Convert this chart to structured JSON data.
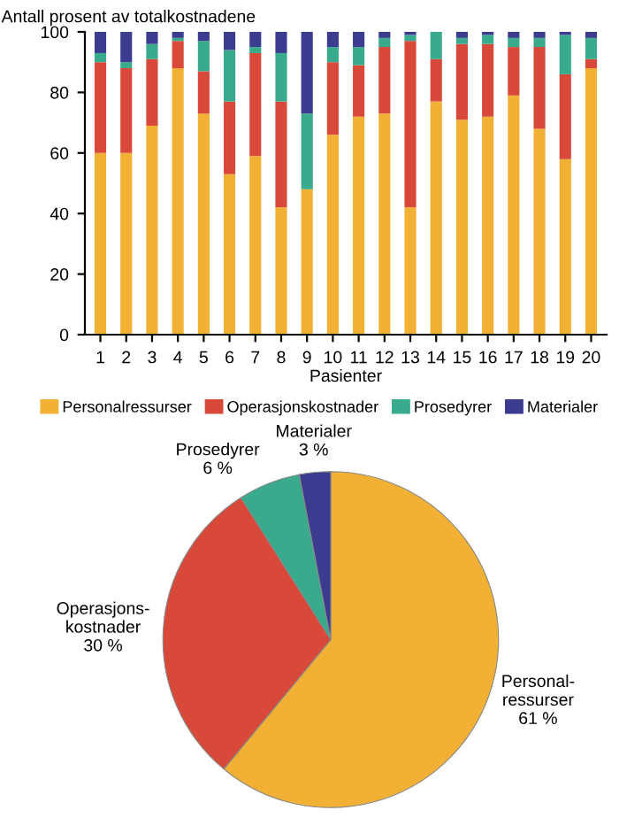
{
  "chart_data": [
    {
      "type": "bar",
      "stacked": true,
      "ylabel": "Antall prosent av totalkostnadene",
      "xlabel": "Pasienter",
      "categories": [
        "1",
        "2",
        "3",
        "4",
        "5",
        "6",
        "7",
        "8",
        "9",
        "10",
        "11",
        "12",
        "13",
        "14",
        "15",
        "16",
        "17",
        "18",
        "19",
        "20"
      ],
      "series": [
        {
          "name": "Personalressurser",
          "color": "#f2b134",
          "values": [
            60,
            60,
            69,
            88,
            73,
            53,
            59,
            42,
            48,
            66,
            72,
            73,
            42,
            77,
            71,
            72,
            79,
            68,
            58,
            88
          ]
        },
        {
          "name": "Operasjonskostnader",
          "color": "#d9493a",
          "values": [
            30,
            28,
            22,
            9,
            14,
            24,
            34,
            35,
            0,
            24,
            17,
            22,
            55,
            14,
            25,
            24,
            16,
            27,
            28,
            3
          ]
        },
        {
          "name": "Prosedyrer",
          "color": "#3aaa8c",
          "values": [
            3,
            2,
            5,
            1,
            10,
            17,
            2,
            16,
            25,
            5,
            6,
            3,
            2,
            9,
            2,
            3,
            3,
            3,
            13,
            7
          ]
        },
        {
          "name": "Materialer",
          "color": "#3b3c8f",
          "values": [
            7,
            10,
            4,
            2,
            3,
            6,
            5,
            7,
            27,
            5,
            5,
            2,
            1,
            0,
            2,
            1,
            2,
            2,
            1,
            2
          ]
        }
      ],
      "ylim": [
        0,
        100
      ],
      "yticks": [
        0,
        20,
        40,
        60,
        80,
        100
      ],
      "grid": false,
      "legend": "bottom"
    },
    {
      "type": "pie",
      "categories": [
        "Personal-\nressurser",
        "Operasjons-\nkostnader",
        "Prosedyrer",
        "Materialer"
      ],
      "values": [
        61,
        30,
        6,
        3
      ],
      "value_labels": [
        "61 %",
        "30 %",
        "6 %",
        "3 %"
      ],
      "colors": [
        "#f2b134",
        "#d9493a",
        "#3aaa8c",
        "#3b3c8f"
      ]
    }
  ]
}
